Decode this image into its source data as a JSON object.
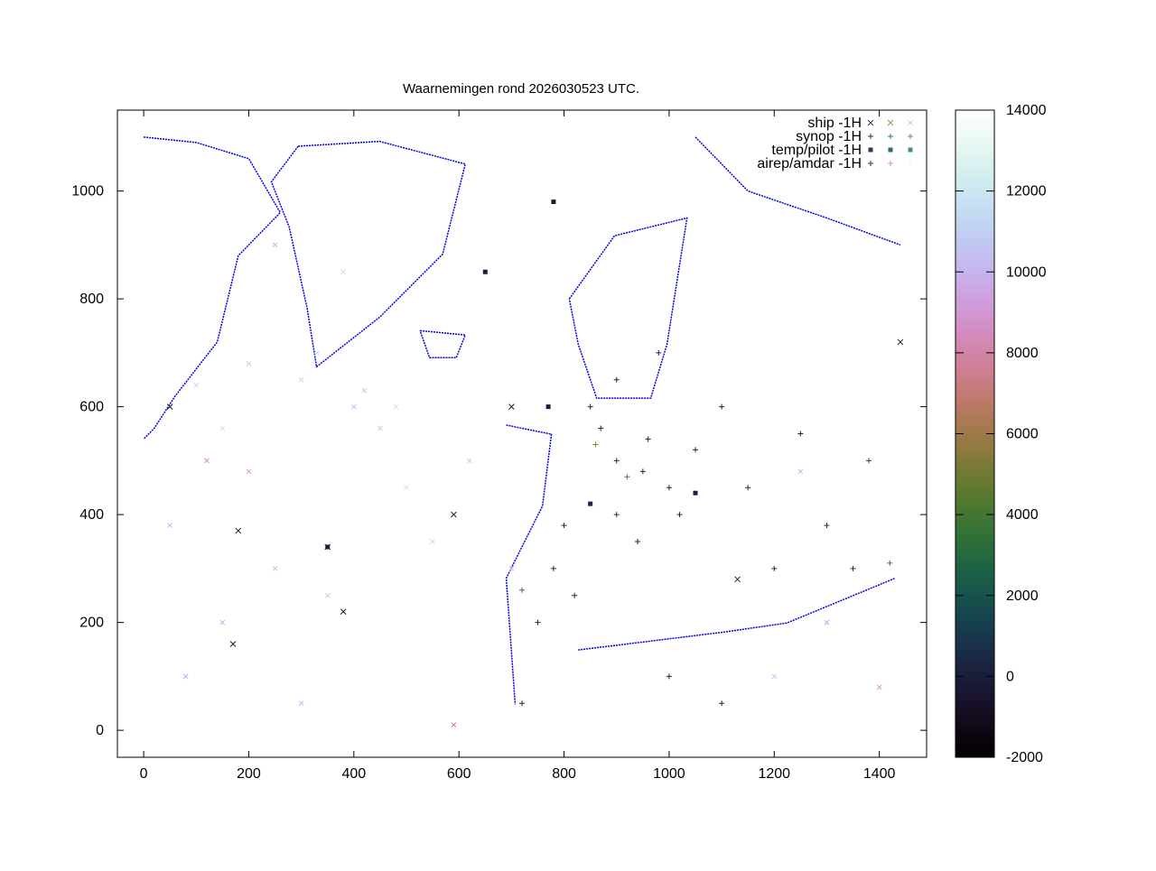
{
  "chart_data": {
    "type": "scatter",
    "title": "Waarnemingen rond 2026030523 UTC.",
    "xlabel": "",
    "ylabel": "",
    "xlim": [
      -50,
      1490
    ],
    "ylim": [
      -50,
      1150
    ],
    "x_ticks": [
      "0",
      "200",
      "400",
      "600",
      "800",
      "1000",
      "1200",
      "1400"
    ],
    "y_ticks": [
      "0",
      "200",
      "400",
      "600",
      "800",
      "1000"
    ],
    "x_tick_values": [
      0,
      200,
      400,
      600,
      800,
      1000,
      1200,
      1400
    ],
    "y_tick_values": [
      0,
      200,
      400,
      600,
      800,
      1000
    ],
    "grid": false,
    "legend_position": "top-right",
    "legend": [
      {
        "label": "ship -1H",
        "marker": "cross",
        "colors": [
          "#2e3a5c",
          "#9a9a5a",
          "#d0c8e8"
        ]
      },
      {
        "label": "synop -1H",
        "marker": "plus",
        "colors": [
          "#2e3a5c",
          "#2a7a70",
          "#5aa040"
        ]
      },
      {
        "label": "temp/pilot -1H",
        "marker": "square",
        "colors": [
          "#2e3a5c",
          "#2a6a78",
          "#3f9a60"
        ]
      },
      {
        "label": "airep/amdar -1H",
        "marker": "plus",
        "colors": [
          "#2e3a5c",
          "#e09090",
          "#f0f0ff"
        ]
      }
    ],
    "colorbar": {
      "palette": "cubehelix",
      "range": [
        -2000,
        14000
      ],
      "ticks": [
        "-2000",
        "0",
        "2000",
        "4000",
        "6000",
        "8000",
        "10000",
        "12000",
        "14000"
      ],
      "tick_values": [
        -2000,
        0,
        2000,
        4000,
        6000,
        8000,
        10000,
        12000,
        14000
      ]
    },
    "coastline_color": "#0000e0",
    "coastlines": [
      [
        [
          294,
          1083
        ],
        [
          449,
          1092
        ],
        [
          612,
          1050
        ],
        [
          569,
          883
        ],
        [
          449,
          766
        ],
        [
          329,
          674
        ],
        [
          311,
          783
        ],
        [
          277,
          933
        ],
        [
          243,
          1017
        ],
        [
          294,
          1083
        ]
      ],
      [
        [
          526,
          741
        ],
        [
          612,
          733
        ],
        [
          595,
          691
        ],
        [
          544,
          691
        ],
        [
          526,
          741
        ]
      ],
      [
        [
          810,
          800
        ],
        [
          896,
          917
        ],
        [
          1034,
          950
        ],
        [
          996,
          716
        ],
        [
          965,
          616
        ],
        [
          862,
          616
        ],
        [
          827,
          716
        ],
        [
          810,
          800
        ]
      ],
      [
        [
          690,
          566
        ],
        [
          776,
          549
        ],
        [
          759,
          416
        ],
        [
          690,
          282
        ],
        [
          707,
          48
        ]
      ],
      [
        [
          827,
          149
        ],
        [
          1103,
          182
        ],
        [
          1224,
          199
        ],
        [
          1430,
          282
        ]
      ],
      [
        [
          0,
          1100
        ],
        [
          100,
          1090
        ],
        [
          200,
          1060
        ],
        [
          260,
          960
        ],
        [
          180,
          880
        ],
        [
          140,
          720
        ],
        [
          60,
          620
        ],
        [
          20,
          560
        ],
        [
          0,
          540
        ]
      ],
      [
        [
          1050,
          1100
        ],
        [
          1150,
          1000
        ],
        [
          1300,
          950
        ],
        [
          1440,
          900
        ]
      ]
    ],
    "series": [
      {
        "name": "airep/amdar -1H",
        "marker": "cross-small",
        "points": [
          [
            100,
            640,
            11500
          ],
          [
            200,
            680,
            11000
          ],
          [
            300,
            650,
            11500
          ],
          [
            400,
            600,
            10500
          ],
          [
            450,
            560,
            11000
          ],
          [
            200,
            480,
            9000
          ],
          [
            120,
            500,
            8500
          ],
          [
            50,
            380,
            10000
          ],
          [
            250,
            300,
            10500
          ],
          [
            350,
            250,
            11000
          ],
          [
            150,
            200,
            10000
          ],
          [
            80,
            100,
            9500
          ],
          [
            300,
            50,
            10500
          ],
          [
            500,
            450,
            12000
          ],
          [
            550,
            350,
            11500
          ],
          [
            620,
            500,
            11000
          ],
          [
            700,
            300,
            10000
          ],
          [
            250,
            900,
            10000
          ],
          [
            380,
            850,
            11500
          ],
          [
            1250,
            480,
            10000
          ],
          [
            1300,
            200,
            9500
          ],
          [
            1400,
            80,
            9000
          ],
          [
            1200,
            100,
            11000
          ],
          [
            150,
            560,
            12000
          ],
          [
            330,
            700,
            11500
          ],
          [
            420,
            630,
            10500
          ],
          [
            480,
            600,
            12000
          ],
          [
            590,
            10,
            7500
          ]
        ]
      },
      {
        "name": "synop -1H",
        "marker": "plus",
        "points": [
          [
            850,
            600,
            100
          ],
          [
            900,
            500,
            300
          ],
          [
            950,
            480,
            500
          ],
          [
            1000,
            450,
            200
          ],
          [
            1050,
            520,
            400
          ],
          [
            900,
            400,
            800
          ],
          [
            780,
            300,
            600
          ],
          [
            820,
            250,
            700
          ],
          [
            750,
            200,
            400
          ],
          [
            900,
            650,
            200
          ],
          [
            980,
            700,
            150
          ],
          [
            1100,
            600,
            300
          ],
          [
            1150,
            450,
            500
          ],
          [
            1300,
            380,
            800
          ],
          [
            1380,
            500,
            1500
          ],
          [
            1000,
            100,
            300
          ],
          [
            1100,
            50,
            500
          ],
          [
            720,
            50,
            200
          ],
          [
            1250,
            550,
            200
          ],
          [
            1350,
            300,
            600
          ],
          [
            920,
            470,
            4500
          ],
          [
            1420,
            310,
            4000
          ],
          [
            860,
            530,
            5500
          ],
          [
            720,
            260,
            3500
          ],
          [
            870,
            560,
            200
          ],
          [
            960,
            540,
            300
          ],
          [
            1020,
            400,
            350
          ],
          [
            940,
            350,
            250
          ],
          [
            800,
            380,
            400
          ],
          [
            1200,
            300,
            500
          ]
        ]
      },
      {
        "name": "ship -1H",
        "marker": "cross",
        "points": [
          [
            180,
            370,
            0
          ],
          [
            50,
            600,
            0
          ],
          [
            350,
            340,
            0
          ],
          [
            380,
            220,
            0
          ],
          [
            590,
            400,
            0
          ],
          [
            700,
            600,
            0
          ],
          [
            1440,
            720,
            0
          ],
          [
            1130,
            280,
            0
          ],
          [
            170,
            160,
            0
          ]
        ]
      },
      {
        "name": "temp/pilot -1H",
        "marker": "square",
        "points": [
          [
            780,
            980,
            0
          ],
          [
            650,
            850,
            0
          ],
          [
            770,
            600,
            100
          ],
          [
            850,
            420,
            300
          ],
          [
            1050,
            440,
            150
          ],
          [
            350,
            340,
            0
          ]
        ]
      }
    ]
  }
}
